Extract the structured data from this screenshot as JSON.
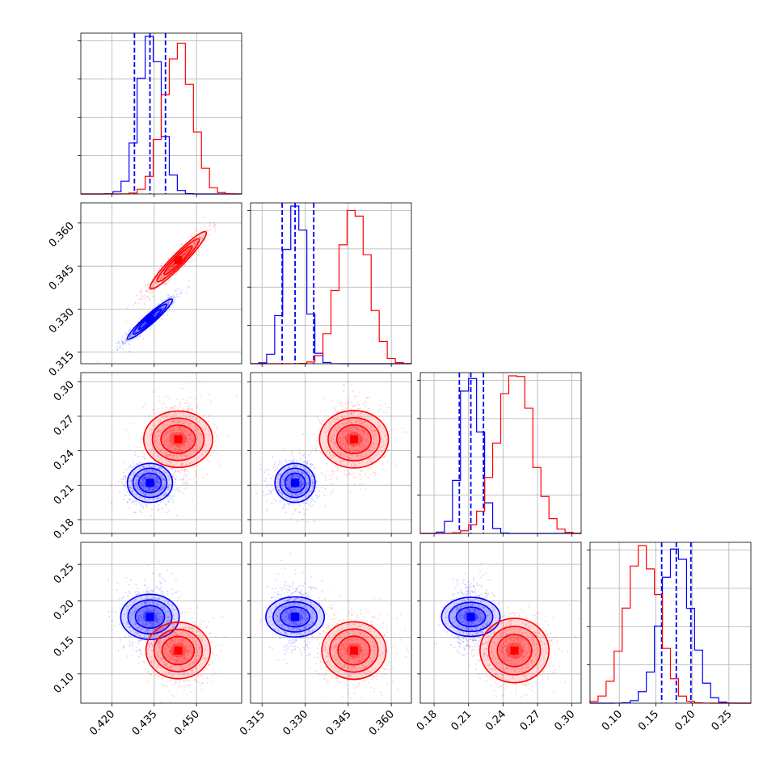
{
  "chart_data": {
    "type": "corner",
    "parameters": [
      {
        "ticks": [
          "0.420",
          "0.435",
          "0.450"
        ],
        "tick_values": [
          0.42,
          0.435,
          0.45
        ],
        "lim": [
          0.409,
          0.466
        ]
      },
      {
        "ticks": [
          "0.315",
          "0.330",
          "0.345",
          "0.360"
        ],
        "tick_values": [
          0.315,
          0.33,
          0.345,
          0.36
        ],
        "lim": [
          0.311,
          0.367
        ]
      },
      {
        "ticks": [
          "0.18",
          "0.21",
          "0.24",
          "0.27",
          "0.30"
        ],
        "tick_values": [
          0.18,
          0.21,
          0.24,
          0.27,
          0.3
        ],
        "lim": [
          0.168,
          0.308
        ]
      },
      {
        "ticks": [
          "0.10",
          "0.15",
          "0.20",
          "0.25"
        ],
        "tick_values": [
          0.1,
          0.15,
          0.2,
          0.25
        ],
        "lim": [
          0.06,
          0.28
        ]
      }
    ],
    "series": [
      {
        "color": "#0000ff",
        "mean": [
          0.4335,
          0.3265,
          0.212,
          0.178
        ],
        "std": [
          0.004,
          0.0035,
          0.0085,
          0.02
        ],
        "quantiles": [
          [
            0.428,
            0.4335,
            0.439
          ],
          [
            0.322,
            0.3265,
            0.333
          ],
          [
            0.202,
            0.212,
            0.223
          ],
          [
            0.158,
            0.178,
            0.198
          ]
        ],
        "correlation": [
          [
            1,
            0.95,
            0,
            0
          ],
          [
            0.95,
            1,
            0,
            0
          ],
          [
            0,
            0,
            1,
            0
          ],
          [
            0,
            0,
            0,
            1
          ]
        ]
      },
      {
        "color": "#ff0000",
        "mean": [
          0.4435,
          0.347,
          0.25,
          0.132
        ],
        "std": [
          0.005,
          0.005,
          0.015,
          0.022
        ],
        "quantiles": null,
        "correlation": [
          [
            1,
            0.95,
            0,
            0
          ],
          [
            0.95,
            1,
            0,
            0
          ],
          [
            0,
            0,
            1,
            0
          ],
          [
            0,
            0,
            0,
            1
          ]
        ]
      }
    ],
    "quantile_line_style": "dashed",
    "grid": true,
    "legend": null
  }
}
